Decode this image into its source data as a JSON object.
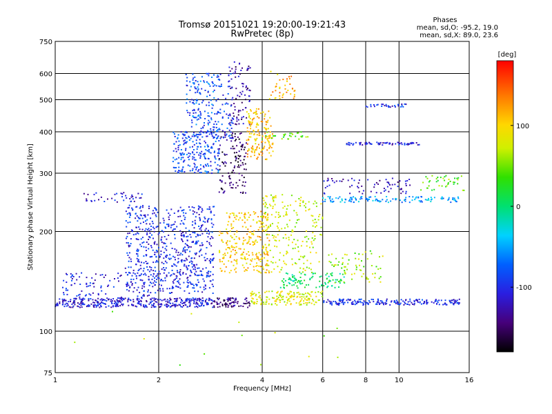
{
  "chart_data": {
    "type": "scatter",
    "title": "Tromsø 20151021 19:20:00-19:21:43",
    "subtitle": "RwPretec (8p)",
    "xlabel": "Frequency [MHz]",
    "ylabel": "Stationary phase Virtual Height [km]",
    "x_scale": "log",
    "y_scale": "log",
    "xlim": [
      1,
      16
    ],
    "ylim": [
      75,
      750
    ],
    "x_ticks": [
      1,
      2,
      4,
      6,
      8,
      10,
      16
    ],
    "y_ticks": [
      75,
      100,
      200,
      300,
      400,
      500,
      600,
      750
    ],
    "grid": true,
    "phase_stats": {
      "heading": "Phases",
      "line_o": "mean, sd,O: -95.2, 19.0",
      "line_x": "mean, sd,X:  89.0, 23.6"
    },
    "colorbar": {
      "label": "[deg]",
      "range": [
        -180,
        180
      ],
      "ticks": [
        100,
        0,
        -100
      ]
    },
    "point_clusters": [
      {
        "x_range": [
          1.0,
          2.9
        ],
        "y_range": [
          118,
          126
        ],
        "phase": -110,
        "count": 380
      },
      {
        "x_range": [
          2.9,
          3.7
        ],
        "y_range": [
          118,
          126
        ],
        "phase": -140,
        "count": 80
      },
      {
        "x_range": [
          3.7,
          6.0
        ],
        "y_range": [
          120,
          132
        ],
        "phase": 80,
        "count": 160
      },
      {
        "x_range": [
          6.0,
          15.0
        ],
        "y_range": [
          120,
          125
        ],
        "phase": -100,
        "count": 200
      },
      {
        "x_range": [
          1.05,
          1.9
        ],
        "y_range": [
          126,
          150
        ],
        "phase": -105,
        "count": 90
      },
      {
        "x_range": [
          1.6,
          2.9
        ],
        "y_range": [
          130,
          240
        ],
        "phase": -100,
        "count": 700
      },
      {
        "x_range": [
          2.2,
          3.0
        ],
        "y_range": [
          300,
          400
        ],
        "phase": -85,
        "count": 220
      },
      {
        "x_range": [
          2.4,
          3.3
        ],
        "y_range": [
          380,
          600
        ],
        "phase": -90,
        "count": 180
      },
      {
        "x_range": [
          3.0,
          3.6
        ],
        "y_range": [
          260,
          400
        ],
        "phase": -150,
        "count": 120
      },
      {
        "x_range": [
          3.2,
          3.7
        ],
        "y_range": [
          420,
          650
        ],
        "phase": -130,
        "count": 80
      },
      {
        "x_range": [
          3.6,
          4.3
        ],
        "y_range": [
          330,
          470
        ],
        "phase": 110,
        "count": 160
      },
      {
        "x_range": [
          4.2,
          5.0
        ],
        "y_range": [
          500,
          620
        ],
        "phase": 115,
        "count": 40
      },
      {
        "x_range": [
          3.0,
          4.2
        ],
        "y_range": [
          150,
          230
        ],
        "phase": 105,
        "count": 260
      },
      {
        "x_range": [
          4.0,
          6.0
        ],
        "y_range": [
          150,
          260
        ],
        "phase": 75,
        "count": 220
      },
      {
        "x_range": [
          4.5,
          7.0
        ],
        "y_range": [
          135,
          150
        ],
        "phase": 0,
        "count": 100
      },
      {
        "x_range": [
          6.2,
          9.0
        ],
        "y_range": [
          140,
          175
        ],
        "phase": 60,
        "count": 70
      },
      {
        "x_range": [
          6.0,
          15.0
        ],
        "y_range": [
          245,
          255
        ],
        "phase": -55,
        "count": 120
      },
      {
        "x_range": [
          6.0,
          11.0
        ],
        "y_range": [
          260,
          290
        ],
        "phase": -120,
        "count": 70
      },
      {
        "x_range": [
          7.0,
          11.5
        ],
        "y_range": [
          365,
          372
        ],
        "phase": -110,
        "count": 70
      },
      {
        "x_range": [
          8.0,
          10.5
        ],
        "y_range": [
          475,
          485
        ],
        "phase": -100,
        "count": 30
      },
      {
        "x_range": [
          1.2,
          1.8
        ],
        "y_range": [
          245,
          262
        ],
        "phase": -110,
        "count": 40
      },
      {
        "x_range": [
          4.0,
          5.5
        ],
        "y_range": [
          380,
          400
        ],
        "phase": 40,
        "count": 30
      },
      {
        "x_range": [
          11.5,
          15.5
        ],
        "y_range": [
          265,
          295
        ],
        "phase": 45,
        "count": 40
      },
      {
        "x_range": [
          2.5,
          3.0
        ],
        "y_range": [
          400,
          600
        ],
        "phase": -70,
        "count": 50
      },
      {
        "x_range": [
          1.1,
          8.0
        ],
        "y_range": [
          76,
          115
        ],
        "phase": 60,
        "count": 14
      }
    ]
  }
}
